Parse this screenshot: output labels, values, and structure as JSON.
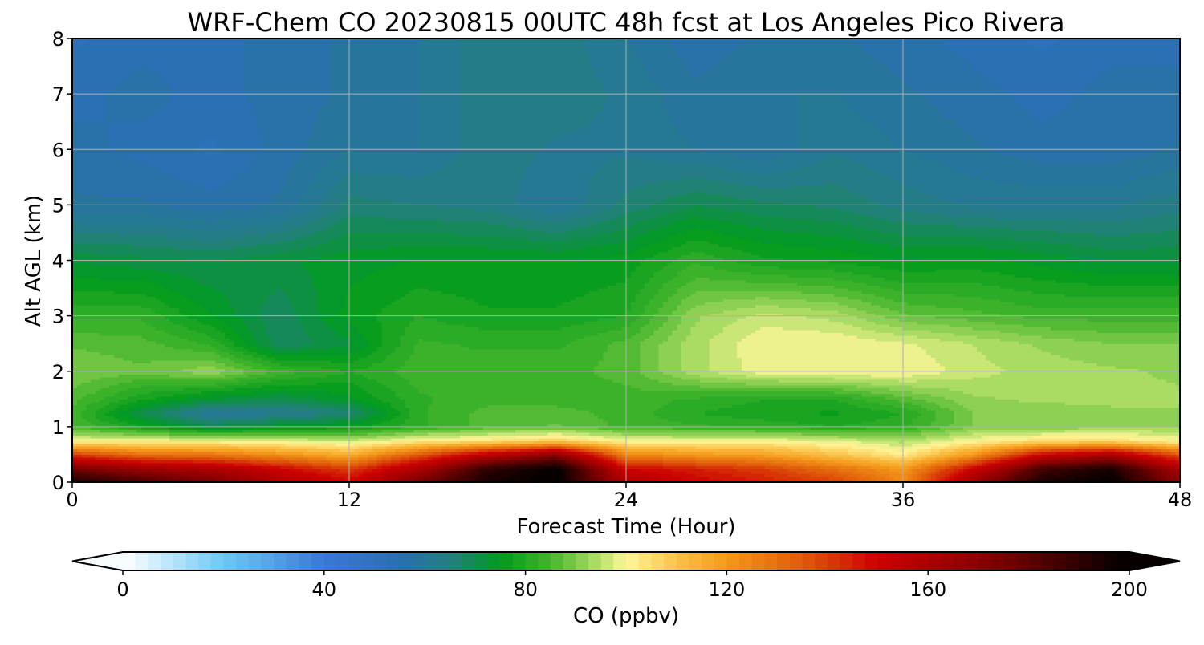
{
  "chart_data": {
    "type": "heatmap",
    "title": "WRF-Chem CO  20230815 00UTC 48h fcst at Los Angeles Pico Rivera",
    "xlabel": "Forecast Time (Hour)",
    "ylabel": "Alt AGL (km)",
    "xlim": [
      0,
      48
    ],
    "ylim": [
      0,
      8
    ],
    "x_ticks": [
      0,
      12,
      24,
      36,
      48
    ],
    "y_ticks": [
      0,
      1,
      2,
      3,
      4,
      5,
      6,
      7,
      8
    ],
    "grid": true,
    "colorbar": {
      "label": "CO  (ppbv)",
      "min": 0,
      "max": 200,
      "step": 2.5,
      "ticks": [
        0,
        40,
        80,
        120,
        160,
        200
      ],
      "extend": "both",
      "orientation": "horizontal",
      "anchors": [
        {
          "v": 0,
          "c": "#ffffff"
        },
        {
          "v": 20,
          "c": "#6cc9f5"
        },
        {
          "v": 40,
          "c": "#3a78d8"
        },
        {
          "v": 55,
          "c": "#2a6faf"
        },
        {
          "v": 65,
          "c": "#237f80"
        },
        {
          "v": 75,
          "c": "#009a1c"
        },
        {
          "v": 85,
          "c": "#45b52c"
        },
        {
          "v": 95,
          "c": "#b8e06a"
        },
        {
          "v": 100,
          "c": "#fff79a"
        },
        {
          "v": 110,
          "c": "#fbc24a"
        },
        {
          "v": 120,
          "c": "#f59a1a"
        },
        {
          "v": 135,
          "c": "#e05a0a"
        },
        {
          "v": 150,
          "c": "#cc0000"
        },
        {
          "v": 170,
          "c": "#8b0000"
        },
        {
          "v": 200,
          "c": "#000000"
        }
      ]
    },
    "grid_data": {
      "x": [
        0,
        3,
        6,
        9,
        12,
        15,
        18,
        21,
        24,
        27,
        30,
        33,
        36,
        39,
        42,
        45,
        48
      ],
      "y": [
        0,
        0.25,
        0.5,
        0.75,
        1,
        1.25,
        1.5,
        2,
        2.5,
        3,
        4,
        5,
        6,
        7,
        8
      ],
      "z": [
        [
          195,
          185,
          175,
          160,
          150,
          175,
          195,
          200,
          160,
          150,
          145,
          140,
          125,
          165,
          195,
          200,
          170
        ],
        [
          175,
          165,
          160,
          150,
          140,
          160,
          190,
          200,
          150,
          145,
          140,
          130,
          120,
          150,
          185,
          195,
          160
        ],
        [
          140,
          130,
          128,
          122,
          115,
          135,
          155,
          170,
          125,
          120,
          118,
          110,
          102,
          120,
          150,
          160,
          135
        ],
        [
          100,
          100,
          100,
          98,
          96,
          102,
          104,
          108,
          100,
          100,
          100,
          98,
          94,
          100,
          105,
          105,
          100
        ],
        [
          85,
          78,
          70,
          74,
          76,
          82,
          86,
          88,
          84,
          83,
          82,
          80,
          82,
          90,
          90,
          92,
          92
        ],
        [
          84,
          70,
          60,
          62,
          66,
          82,
          86,
          86,
          84,
          80,
          78,
          77,
          80,
          90,
          91,
          92,
          92
        ],
        [
          86,
          78,
          72,
          70,
          74,
          82,
          84,
          84,
          84,
          82,
          80,
          80,
          86,
          92,
          93,
          93,
          93
        ],
        [
          90,
          88,
          92,
          84,
          80,
          84,
          84,
          84,
          86,
          94,
          99,
          100,
          100,
          96,
          94,
          93,
          92
        ],
        [
          87,
          86,
          82,
          68,
          72,
          83,
          82,
          82,
          86,
          94,
          100,
          100,
          98,
          95,
          92,
          90,
          90
        ],
        [
          82,
          82,
          75,
          68,
          76,
          80,
          78,
          78,
          80,
          92,
          96,
          94,
          88,
          86,
          84,
          84,
          84
        ],
        [
          72,
          71,
          70,
          72,
          74,
          75,
          75,
          75,
          76,
          82,
          78,
          77,
          75,
          76,
          74,
          72,
          72
        ],
        [
          58,
          58,
          56,
          58,
          66,
          65,
          64,
          60,
          66,
          70,
          68,
          67,
          64,
          62,
          62,
          62,
          64
        ],
        [
          56,
          54,
          52,
          56,
          60,
          60,
          64,
          62,
          62,
          60,
          58,
          62,
          60,
          58,
          56,
          56,
          58
        ],
        [
          54,
          56,
          54,
          56,
          58,
          60,
          64,
          64,
          62,
          58,
          60,
          60,
          58,
          56,
          54,
          56,
          56
        ],
        [
          52,
          54,
          54,
          56,
          58,
          60,
          64,
          64,
          60,
          56,
          58,
          58,
          56,
          54,
          52,
          54,
          54
        ]
      ]
    }
  }
}
